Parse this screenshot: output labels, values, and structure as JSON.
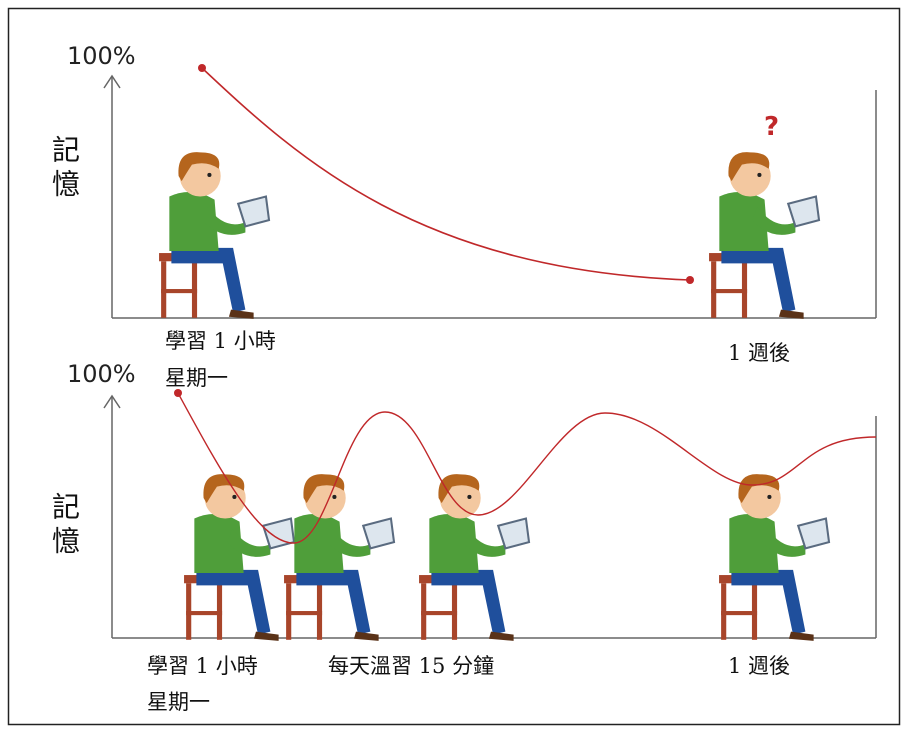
{
  "panels": [
    {
      "max_label": "100%",
      "y_label": "記憶",
      "start_label": "學習 1 小時",
      "day_label": "星期一",
      "end_label": "1 週後",
      "question_mark": "?"
    },
    {
      "max_label": "100%",
      "y_label": "記憶",
      "start_label": "學習 1 小時",
      "day_label": "星期一",
      "review_label": "每天溫習 15 分鐘",
      "end_label": "1 週後"
    }
  ]
}
